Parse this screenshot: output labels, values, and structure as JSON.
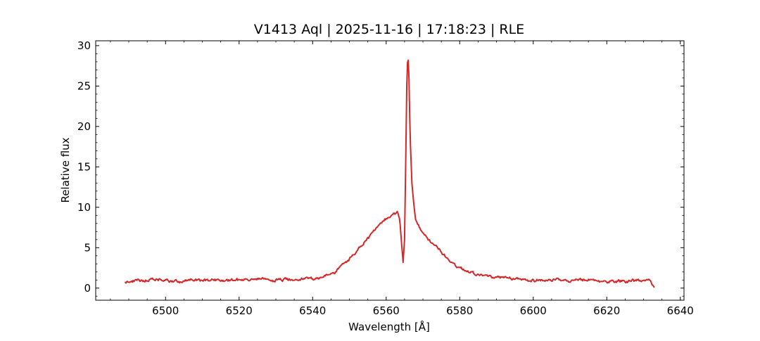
{
  "chart_data": {
    "type": "line",
    "title": "V1413 Aql | 2025-11-16 | 17:18:23 | RLE",
    "xlabel": "Wavelength [Å]",
    "ylabel": "Relative flux",
    "xlim": [
      6481,
      6641
    ],
    "ylim": [
      -1.5,
      30.6
    ],
    "xticks": [
      6500,
      6520,
      6540,
      6560,
      6580,
      6600,
      6620,
      6640
    ],
    "xtick_labels": [
      "6500",
      "6520",
      "6540",
      "6560",
      "6580",
      "6600",
      "6620",
      "6640"
    ],
    "yticks": [
      0,
      5,
      10,
      15,
      20,
      25,
      30
    ],
    "ytick_labels": [
      "0",
      "5",
      "10",
      "15",
      "20",
      "25",
      "30"
    ],
    "x_minor_step": 5,
    "y_minor_step": 1,
    "grid": false,
    "legend": "none",
    "line_color": "#d62728",
    "x_range": [
      6489,
      6633
    ],
    "x": [
      6489,
      6492,
      6495,
      6498,
      6501,
      6504,
      6507,
      6510,
      6513,
      6516,
      6519,
      6522,
      6525,
      6528,
      6531,
      6534,
      6537,
      6540,
      6542,
      6544,
      6546,
      6548,
      6550,
      6552,
      6554,
      6556,
      6558,
      6560,
      6561,
      6562,
      6563,
      6563.7,
      6564.2,
      6564.6,
      6565.0,
      6565.3,
      6565.6,
      6565.9,
      6566.2,
      6566.5,
      6567.0,
      6567.5,
      6568.0,
      6569,
      6570,
      6572,
      6574,
      6576,
      6578,
      6580,
      6583,
      6586,
      6590,
      6595,
      6600,
      6605,
      6610,
      6615,
      6620,
      6625,
      6630,
      6632,
      6633
    ],
    "y": [
      0.7,
      0.9,
      1.0,
      1.0,
      0.9,
      0.8,
      1.0,
      0.9,
      1.1,
      0.9,
      1.1,
      1.0,
      1.1,
      1.0,
      1.0,
      1.1,
      1.2,
      1.2,
      1.3,
      1.5,
      2.0,
      2.8,
      3.6,
      4.6,
      5.6,
      6.7,
      7.7,
      8.5,
      8.9,
      9.2,
      9.5,
      8.5,
      5.5,
      3.2,
      6.0,
      15.0,
      25.0,
      29.3,
      26.0,
      19.0,
      13.0,
      10.5,
      8.5,
      7.5,
      6.8,
      5.8,
      4.9,
      4.0,
      3.1,
      2.5,
      2.0,
      1.6,
      1.3,
      1.1,
      1.0,
      1.0,
      0.9,
      1.0,
      0.8,
      0.9,
      1.0,
      0.8,
      0.1
    ]
  }
}
